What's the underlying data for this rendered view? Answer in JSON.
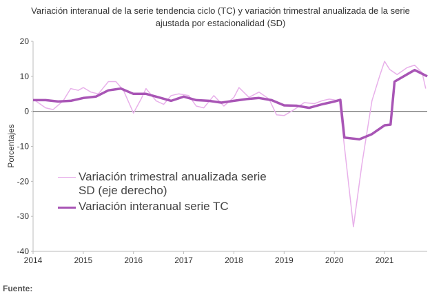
{
  "chart_data": {
    "type": "line",
    "title": [
      "Variación interanual de la serie tendencia ciclo (TC) y variación trimestral anualizada de la serie",
      "ajustada por estacionalidad (SD)"
    ],
    "ylabel": "Porcentajes",
    "xlim": [
      2014,
      2021.85
    ],
    "xticks": [
      2014,
      2015,
      2016,
      2017,
      2018,
      2019,
      2020,
      2021
    ],
    "ylim": [
      -40,
      20
    ],
    "yticks": [
      -40,
      -30,
      -20,
      -10,
      0,
      10,
      20
    ],
    "grid": false,
    "series": [
      {
        "name": "Variación trimestral anualizada serie SD (eje derecho)",
        "color": "#e8b0ea",
        "width": 1.5,
        "x": [
          2014.0,
          2014.25,
          2014.4,
          2014.6,
          2014.75,
          2014.9,
          2015.0,
          2015.15,
          2015.3,
          2015.5,
          2015.65,
          2015.8,
          2016.0,
          2016.15,
          2016.25,
          2016.45,
          2016.6,
          2016.75,
          2016.9,
          2017.1,
          2017.25,
          2017.4,
          2017.6,
          2017.8,
          2018.0,
          2018.1,
          2018.3,
          2018.5,
          2018.7,
          2018.85,
          2019.0,
          2019.2,
          2019.4,
          2019.6,
          2019.75,
          2019.9,
          2020.1,
          2020.2,
          2020.38,
          2020.55,
          2020.75,
          2020.9,
          2021.0,
          2021.1,
          2021.25,
          2021.45,
          2021.6,
          2021.75,
          2021.82
        ],
        "values": [
          3.5,
          1.0,
          0.5,
          3.0,
          6.5,
          6.0,
          6.8,
          5.5,
          5.0,
          8.5,
          8.5,
          6.0,
          -0.5,
          3.5,
          6.5,
          3.0,
          2.0,
          4.5,
          5.0,
          4.5,
          1.5,
          1.0,
          4.5,
          1.5,
          4.0,
          6.8,
          4.0,
          5.5,
          3.5,
          -1.0,
          -1.2,
          0.5,
          2.5,
          2.2,
          3.0,
          3.5,
          3.0,
          -10,
          -33,
          -15,
          3,
          10,
          14.3,
          12,
          10.5,
          12.5,
          13.2,
          11,
          6.5
        ]
      },
      {
        "name": "Variación interanual serie TC",
        "color": "#a855b5",
        "width": 3.5,
        "x": [
          2014.0,
          2014.25,
          2014.5,
          2014.75,
          2015.0,
          2015.25,
          2015.5,
          2015.75,
          2016.0,
          2016.25,
          2016.5,
          2016.75,
          2017.0,
          2017.25,
          2017.5,
          2017.75,
          2018.0,
          2018.25,
          2018.5,
          2018.75,
          2019.0,
          2019.25,
          2019.5,
          2019.75,
          2020.0,
          2020.12,
          2020.2,
          2020.5,
          2020.75,
          2021.0,
          2021.12,
          2021.2,
          2021.5,
          2021.6,
          2021.85
        ],
        "values": [
          3.2,
          3.2,
          2.8,
          3.0,
          3.8,
          4.2,
          6.0,
          6.5,
          5.0,
          5.0,
          4.0,
          3.0,
          4.2,
          3.2,
          3.0,
          2.5,
          3.0,
          3.5,
          3.8,
          3.2,
          1.7,
          1.6,
          1.0,
          2.0,
          2.8,
          3.3,
          -7.5,
          -8,
          -6.5,
          -4,
          -3.8,
          8.5,
          11,
          11.8,
          10
        ]
      }
    ]
  },
  "source": "Fuente:"
}
